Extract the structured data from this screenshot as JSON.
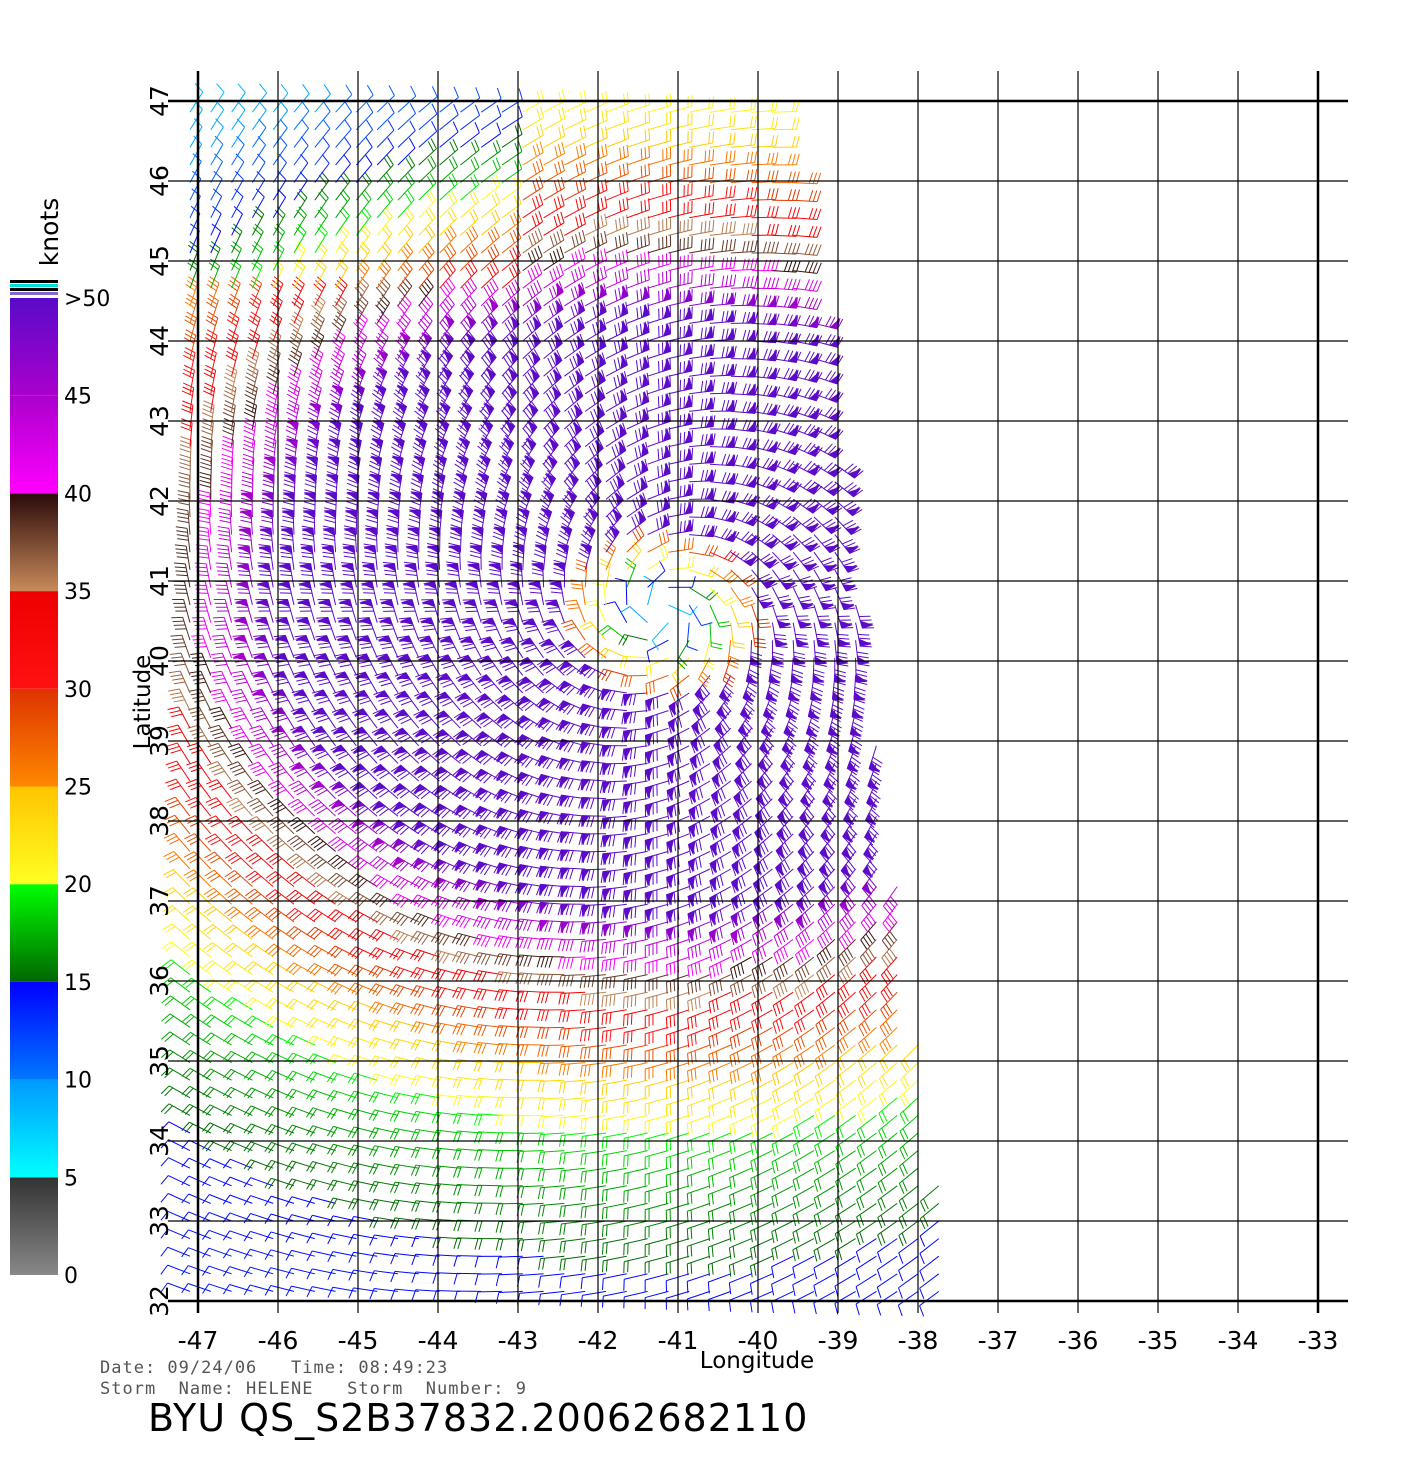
{
  "chart_data": {
    "type": "scatter",
    "subtype": "wind-barb-map",
    "title": "",
    "xlabel": "Longitude",
    "ylabel": "Latitude",
    "xlim": [
      -47,
      -33
    ],
    "ylim": [
      32,
      47
    ],
    "x_ticks": [
      "-47",
      "-46",
      "-45",
      "-44",
      "-43",
      "-42",
      "-41",
      "-40",
      "-39",
      "-38",
      "-37",
      "-36",
      "-35",
      "-34",
      "-33"
    ],
    "y_ticks": [
      "32",
      "33",
      "34",
      "35",
      "36",
      "37",
      "38",
      "39",
      "40",
      "41",
      "42",
      "43",
      "44",
      "45",
      "46",
      "47"
    ],
    "grid": true,
    "colorbar": {
      "label": "knots",
      "placement": "left",
      "tick_labels": [
        "0",
        "5",
        "10",
        "15",
        "20",
        "25",
        "30",
        "35",
        "40",
        "45",
        ">50"
      ],
      "bands": [
        {
          "range": [
            0,
            5
          ],
          "colors": [
            "#888888",
            "#333333"
          ]
        },
        {
          "range": [
            5,
            10
          ],
          "colors": [
            "#00ffff",
            "#0099ff"
          ]
        },
        {
          "range": [
            10,
            15
          ],
          "colors": [
            "#0077ff",
            "#0000ff"
          ]
        },
        {
          "range": [
            15,
            20
          ],
          "colors": [
            "#006600",
            "#00ff00"
          ]
        },
        {
          "range": [
            20,
            25
          ],
          "colors": [
            "#ffff22",
            "#ffc400"
          ]
        },
        {
          "range": [
            25,
            30
          ],
          "colors": [
            "#ff8800",
            "#dd3300"
          ]
        },
        {
          "range": [
            30,
            35
          ],
          "colors": [
            "#ff1111",
            "#ee0000"
          ]
        },
        {
          "range": [
            35,
            40
          ],
          "colors": [
            "#c88a5a",
            "#2a0a0a"
          ]
        },
        {
          "range": [
            40,
            45
          ],
          "colors": [
            "#ff00ff",
            "#aa00cc"
          ]
        },
        {
          "range": [
            45,
            50
          ],
          "colors": [
            "#aa00cc",
            "#5a0bc8"
          ]
        }
      ]
    },
    "storm_center": [
      -41.2,
      40.6
    ],
    "swath": {
      "lon_west": -47.0,
      "lon_east_north": -39.7,
      "lon_east_south": -37.5,
      "lat_south": 32.0,
      "lat_north": 47.0
    },
    "series": []
  },
  "info": {
    "date_line": "Date: 09/24/06   Time: 08:49:23",
    "storm_line": "Storm  Name: HELENE   Storm  Number: 9",
    "file_id": "BYU  QS_S2B37832.20062682110"
  }
}
